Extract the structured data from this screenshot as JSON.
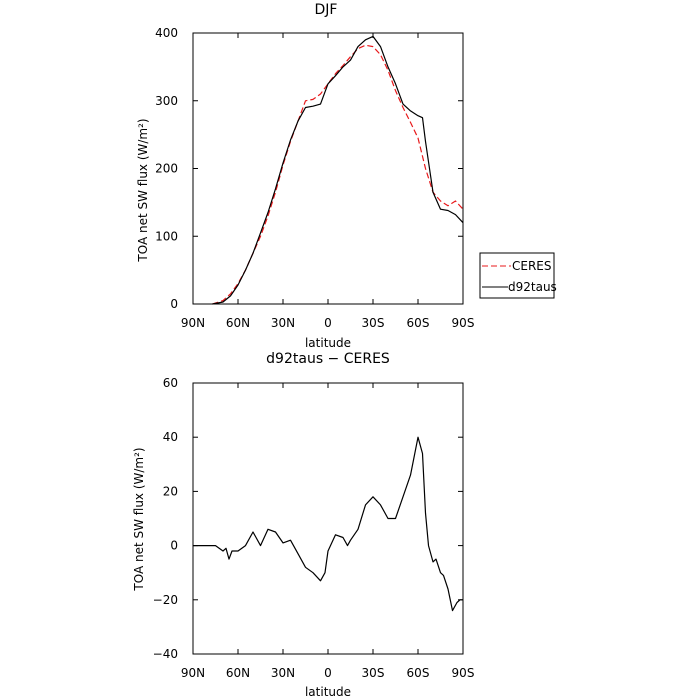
{
  "chart_data": [
    {
      "type": "line",
      "title": "DJF",
      "xlabel": "latitude",
      "ylabel": "TOA net SW flux (W/m²)",
      "xlim": [
        -90,
        90
      ],
      "ylim": [
        0,
        400
      ],
      "xticks": [
        -90,
        -60,
        -30,
        0,
        30,
        60,
        90
      ],
      "xtick_labels": [
        "90N",
        "60N",
        "30N",
        "0",
        "30S",
        "60S",
        "90S"
      ],
      "yticks": [
        0,
        100,
        200,
        300,
        400
      ],
      "ytick_labels": [
        "0",
        "100",
        "200",
        "300",
        "400"
      ],
      "legend_position": "right",
      "series": [
        {
          "name": "CERES",
          "color": "#e8191b",
          "style": "dashed",
          "x": [
            -77,
            -70,
            -65,
            -60,
            -55,
            -50,
            -45,
            -40,
            -35,
            -30,
            -25,
            -20,
            -15,
            -10,
            -5,
            0,
            5,
            10,
            15,
            20,
            25,
            30,
            35,
            40,
            45,
            50,
            55,
            60,
            65,
            70,
            75,
            80,
            85,
            90
          ],
          "y": [
            0,
            5,
            15,
            30,
            50,
            75,
            100,
            130,
            165,
            205,
            240,
            270,
            300,
            302,
            310,
            325,
            340,
            352,
            365,
            377,
            382,
            380,
            368,
            345,
            315,
            290,
            268,
            245,
            200,
            165,
            152,
            145,
            152,
            140
          ]
        },
        {
          "name": "d92taus",
          "color": "#000000",
          "style": "solid",
          "x": [
            -77,
            -70,
            -65,
            -60,
            -55,
            -50,
            -45,
            -40,
            -35,
            -30,
            -25,
            -20,
            -15,
            -10,
            -5,
            0,
            5,
            10,
            15,
            20,
            25,
            30,
            35,
            40,
            45,
            50,
            55,
            60,
            63,
            65,
            70,
            75,
            80,
            85,
            90
          ],
          "y": [
            0,
            3,
            12,
            28,
            50,
            75,
            105,
            135,
            170,
            208,
            242,
            270,
            290,
            292,
            295,
            325,
            337,
            350,
            360,
            380,
            390,
            395,
            380,
            350,
            325,
            295,
            285,
            278,
            275,
            240,
            165,
            140,
            138,
            132,
            120
          ]
        }
      ]
    },
    {
      "type": "line",
      "title": "d92taus − CERES",
      "xlabel": "latitude",
      "ylabel": "TOA net SW flux (W/m²)",
      "xlim": [
        -90,
        90
      ],
      "ylim": [
        -40,
        60
      ],
      "xticks": [
        -90,
        -60,
        -30,
        0,
        30,
        60,
        90
      ],
      "xtick_labels": [
        "90N",
        "60N",
        "30N",
        "0",
        "30S",
        "60S",
        "90S"
      ],
      "yticks": [
        -40,
        -20,
        0,
        20,
        40,
        60
      ],
      "ytick_labels": [
        "−40",
        "−20",
        "0",
        "20",
        "40",
        "60"
      ],
      "series": [
        {
          "color": "#000000",
          "style": "solid",
          "x": [
            -90,
            -80,
            -75,
            -70,
            -68,
            -66,
            -64,
            -60,
            -55,
            -50,
            -45,
            -40,
            -35,
            -30,
            -25,
            -20,
            -15,
            -10,
            -5,
            -2,
            0,
            5,
            10,
            13,
            15,
            20,
            25,
            30,
            35,
            40,
            45,
            50,
            55,
            60,
            63,
            65,
            67,
            70,
            72,
            75,
            77,
            80,
            83,
            86,
            88,
            90
          ],
          "y": [
            0,
            0,
            0,
            -2,
            -1,
            -5,
            -2,
            -2,
            0,
            5,
            0,
            6,
            5,
            1,
            2,
            -3,
            -8,
            -10,
            -13,
            -10,
            -2,
            4,
            3,
            0,
            2,
            6,
            15,
            18,
            15,
            10,
            10,
            18,
            26,
            40,
            34,
            12,
            0,
            -6,
            -5,
            -10,
            -11,
            -16,
            -24,
            -21,
            -20,
            -20
          ]
        }
      ]
    }
  ],
  "footer": {
    "credit": ""
  }
}
